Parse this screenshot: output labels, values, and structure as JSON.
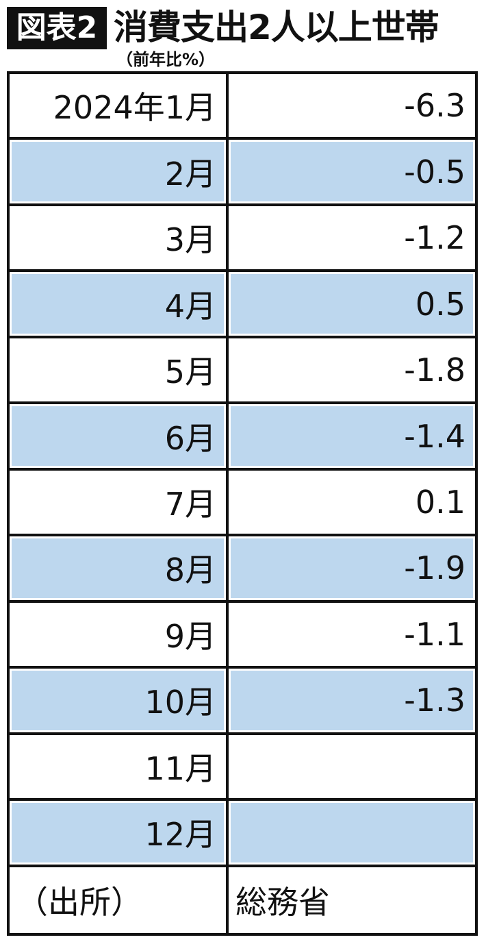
{
  "header": {
    "badge": "図表2",
    "title": "消費支出2人以上世帯",
    "subtitle": "（前年比%）"
  },
  "table": {
    "rows": [
      [
        "2024年1月",
        -6.3
      ],
      [
        "2月",
        -0.5
      ],
      [
        "3月",
        -1.2
      ],
      [
        "4月",
        0.5
      ],
      [
        "5月",
        -1.8
      ],
      [
        "6月",
        -1.4
      ],
      [
        "7月",
        0.1
      ],
      [
        "8月",
        -1.9
      ],
      [
        "9月",
        -1.1
      ],
      [
        "10月",
        -1.3
      ],
      [
        "11月"
      ],
      [
        "12月"
      ]
    ],
    "footer": [
      "（出所）",
      "総務省"
    ]
  }
}
